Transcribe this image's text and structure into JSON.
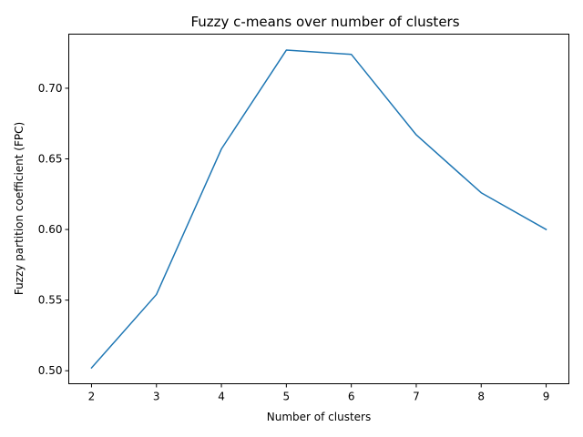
{
  "chart_data": {
    "type": "line",
    "title": "Fuzzy c-means over number of clusters",
    "xlabel": "Number of clusters",
    "ylabel": "Fuzzy partition coefficient (FPC)",
    "x": [
      2,
      3,
      4,
      5,
      6,
      7,
      8,
      9
    ],
    "series": [
      {
        "values": [
          0.502,
          0.554,
          0.657,
          0.727,
          0.724,
          0.667,
          0.626,
          0.6
        ],
        "color": "#1f77b4"
      }
    ],
    "xlim": [
      1.65,
      9.35
    ],
    "ylim": [
      0.4908,
      0.7383
    ],
    "xticks": [
      "2",
      "3",
      "4",
      "5",
      "6",
      "7",
      "8",
      "9"
    ],
    "yticks": [
      "0.50",
      "0.55",
      "0.60",
      "0.65",
      "0.70"
    ],
    "grid": false,
    "legend": "none"
  }
}
